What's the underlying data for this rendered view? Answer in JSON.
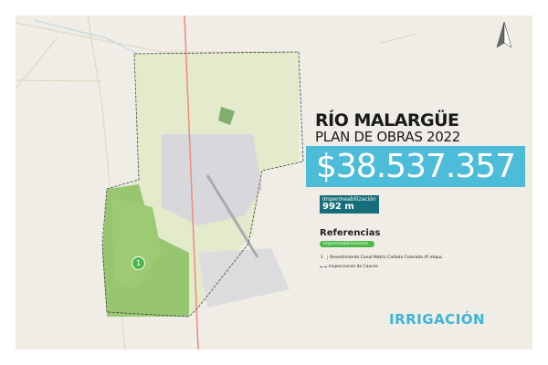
{
  "title": "RÍO MALARGÜE",
  "subtitle": "PLAN DE OBRAS 2022",
  "amount": "$38.537.357",
  "impermeabilizacion": {
    "label": "Impermeabilización",
    "value": "992 m"
  },
  "referencias": {
    "title": "Referencias",
    "category": "Impermeabilizaciones",
    "items": [
      {
        "marker": "1",
        "label": "Revestimiento Canal Matriz Cañada Colorada 4º etapa."
      },
      {
        "marker": "",
        "label": "Inspecciones de Cauces"
      }
    ]
  },
  "map_marker": "1",
  "logo": "IRRIGACIÓN",
  "colors": {
    "accent": "#4dbcd8",
    "dark_teal": "#156f7a",
    "green": "#4cb84a",
    "map_bg": "#efede5"
  },
  "icons": {
    "north": "north-arrow-icon"
  }
}
